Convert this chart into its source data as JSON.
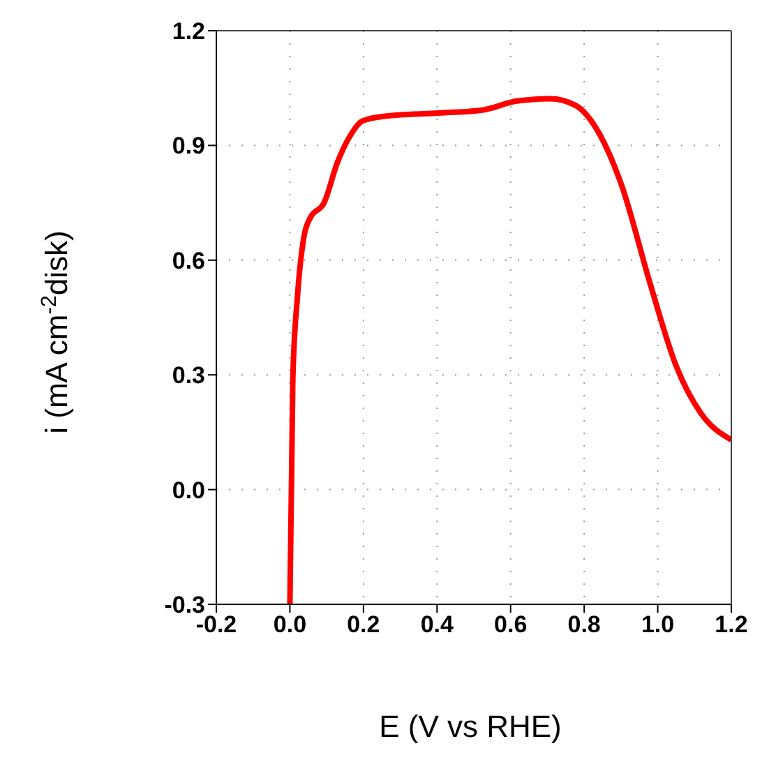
{
  "chart_data": {
    "type": "line",
    "xlabel": "E (V vs RHE)",
    "ylabel": "i (mA cm$^{-2}$disk)",
    "xlim": [
      -0.2,
      1.2
    ],
    "xticks": [
      -0.2,
      {
        "value": 0,
        "label": "0.0"
      },
      0.2,
      0.4,
      0.6,
      0.8,
      {
        "value": 1,
        "label": "1.0"
      },
      1.2
    ],
    "ylim": [
      -0.3,
      1.2
    ],
    "yticks": [
      -0.3,
      {
        "value": 0,
        "label": "0.0"
      },
      0.3,
      0.6,
      0.9,
      1.2
    ],
    "grid": true,
    "marker": "none",
    "line_style": "solid",
    "series": [
      {
        "color": "#ff0000",
        "x": [
          0.0,
          0.008,
          0.021,
          0.038,
          0.055,
          0.093,
          0.129,
          0.163,
          0.197,
          0.254,
          0.413,
          0.527,
          0.617,
          0.708,
          0.776,
          0.845,
          0.901,
          0.981,
          1.049,
          1.117,
          1.2
        ],
        "values": [
          -0.3,
          0.29,
          0.51,
          0.66,
          0.71,
          0.75,
          0.855,
          0.924,
          0.964,
          0.976,
          0.985,
          0.993,
          1.016,
          1.022,
          1.005,
          0.924,
          0.798,
          0.533,
          0.326,
          0.2,
          0.13
        ]
      }
    ]
  }
}
